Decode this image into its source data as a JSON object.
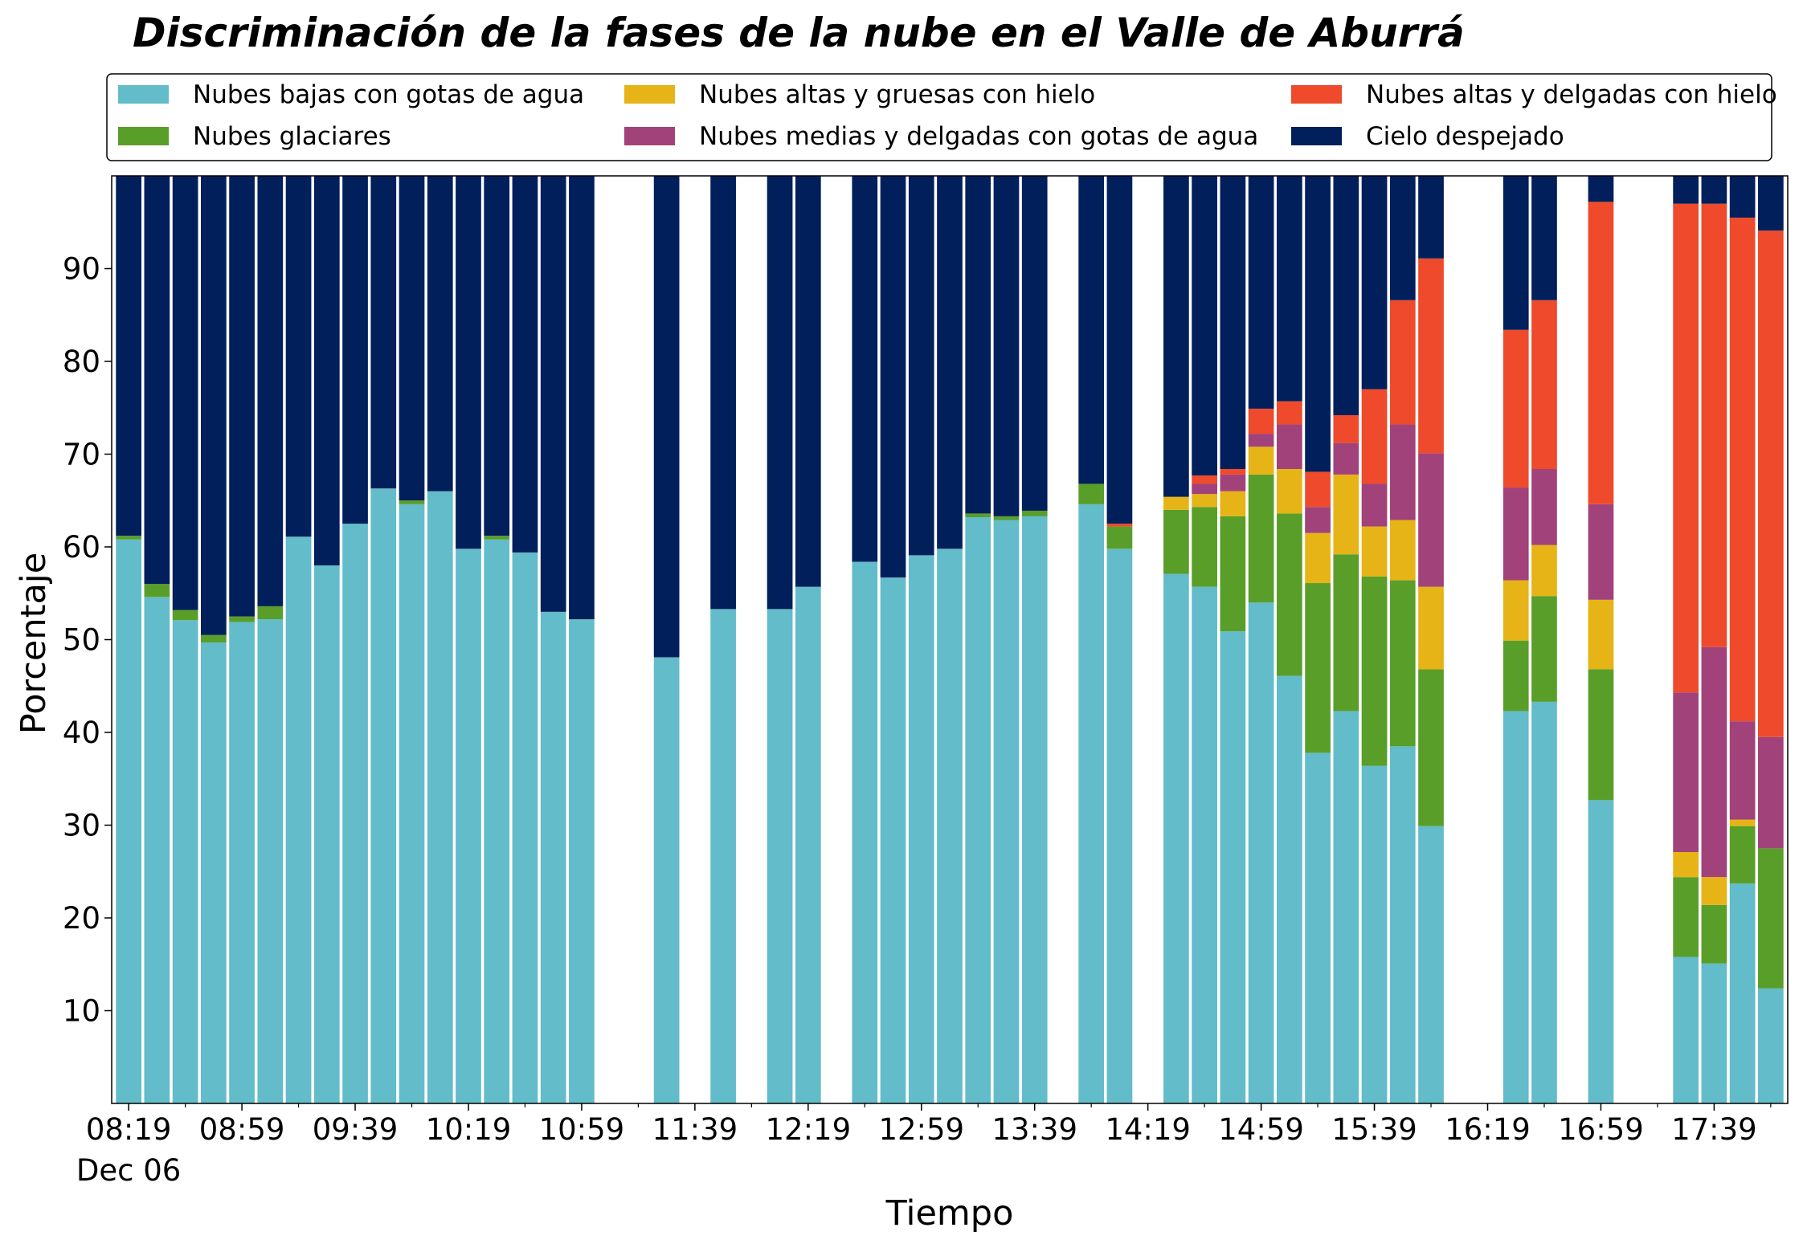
{
  "chart_data": {
    "type": "stacked_bar",
    "title": "Discriminación de la fases de la nube en el Valle de Aburrá",
    "xlabel": "Tiempo",
    "ylabel": "Porcentaje",
    "x": [
      "08:19",
      "08:29",
      "08:39",
      "08:49",
      "08:59",
      "09:09",
      "09:19",
      "09:29",
      "09:39",
      "09:49",
      "09:59",
      "10:09",
      "10:19",
      "10:29",
      "10:39",
      "10:49",
      "10:59",
      "11:29",
      "11:49",
      "12:09",
      "12:19",
      "12:39",
      "12:49",
      "12:59",
      "13:09",
      "13:19",
      "13:29",
      "13:39",
      "13:59",
      "14:09",
      "14:29",
      "14:39",
      "14:49",
      "14:59",
      "15:09",
      "15:19",
      "15:29",
      "15:39",
      "15:49",
      "15:59",
      "16:29",
      "16:39",
      "16:59",
      "17:29",
      "17:39",
      "17:49",
      "17:59"
    ],
    "xlim": [
      "08:13",
      "18:05"
    ],
    "xticks": [
      "08:19",
      "08:59",
      "09:39",
      "10:19",
      "10:59",
      "11:39",
      "12:19",
      "12:59",
      "13:39",
      "14:19",
      "14:59",
      "15:39",
      "16:19",
      "16:59",
      "17:39"
    ],
    "xminorticks": [
      "08:39",
      "09:19",
      "09:59",
      "10:39",
      "11:19",
      "11:59",
      "12:39",
      "13:19",
      "13:59",
      "14:39",
      "15:19",
      "15:59",
      "16:39",
      "17:19",
      "17:59"
    ],
    "xtick_sublabel": "Dec 06",
    "ylim": [
      0,
      100
    ],
    "yticks": [
      10,
      20,
      30,
      40,
      50,
      60,
      70,
      80,
      90
    ],
    "bar_width_minutes": 9,
    "legend": "top-outside",
    "series": [
      {
        "name": "Nubes bajas con gotas de agua",
        "color": "#63bcc9",
        "values": [
          60.8,
          54.6,
          52.1,
          49.7,
          51.9,
          52.2,
          61.1,
          58.0,
          62.5,
          66.3,
          64.6,
          66.0,
          59.8,
          60.8,
          59.4,
          53.0,
          52.2,
          48.1,
          53.3,
          53.3,
          55.7,
          58.4,
          56.7,
          59.1,
          59.8,
          63.2,
          62.9,
          63.3,
          64.6,
          59.8,
          57.1,
          55.7,
          50.9,
          54.0,
          46.1,
          37.8,
          42.3,
          36.4,
          38.5,
          29.9,
          42.3,
          43.3,
          32.7,
          15.8,
          15.1,
          23.7,
          12.4
        ]
      },
      {
        "name": "Nubes glaciares",
        "color": "#5a9e2a",
        "values": [
          0.4,
          1.4,
          1.1,
          0.8,
          0.6,
          1.4,
          0,
          0,
          0,
          0,
          0.4,
          0,
          0,
          0.4,
          0,
          0,
          0,
          0,
          0,
          0,
          0,
          0,
          0,
          0,
          0,
          0.4,
          0.4,
          0.6,
          2.2,
          2.4,
          6.9,
          8.6,
          12.4,
          13.8,
          17.5,
          18.3,
          16.9,
          20.4,
          17.9,
          16.9,
          7.6,
          11.4,
          14.1,
          8.6,
          6.3,
          6.2,
          15.1
        ]
      },
      {
        "name": "Nubes altas y gruesas con hielo",
        "color": "#e6b416",
        "values": [
          0,
          0,
          0,
          0,
          0,
          0,
          0,
          0,
          0,
          0,
          0,
          0,
          0,
          0,
          0,
          0,
          0,
          0,
          0,
          0,
          0,
          0,
          0,
          0,
          0,
          0,
          0,
          0,
          0,
          0,
          1.4,
          1.4,
          2.7,
          3.0,
          4.8,
          5.4,
          8.6,
          5.4,
          6.5,
          8.9,
          6.5,
          5.5,
          7.5,
          2.7,
          3.0,
          0.7,
          0
        ]
      },
      {
        "name": "Nubes medias y delgadas con gotas de agua",
        "color": "#a2427a",
        "values": [
          0,
          0,
          0,
          0,
          0,
          0,
          0,
          0,
          0,
          0,
          0,
          0,
          0,
          0,
          0,
          0,
          0,
          0,
          0,
          0,
          0,
          0,
          0,
          0,
          0,
          0,
          0,
          0,
          0,
          0,
          0,
          1.1,
          1.8,
          1.4,
          4.8,
          2.8,
          3.4,
          4.6,
          10.3,
          14.4,
          10.0,
          8.2,
          10.3,
          17.2,
          24.8,
          10.6,
          12.0
        ]
      },
      {
        "name": "Nubes altas y delgadas con hielo",
        "color": "#ee4a2b",
        "values": [
          0,
          0,
          0,
          0,
          0,
          0,
          0,
          0,
          0,
          0,
          0,
          0,
          0,
          0,
          0,
          0,
          0,
          0,
          0,
          0,
          0,
          0,
          0,
          0,
          0,
          0,
          0,
          0,
          0,
          0.3,
          0,
          0.9,
          0.6,
          2.7,
          2.5,
          3.8,
          3.0,
          10.2,
          13.4,
          21.0,
          17.0,
          18.2,
          32.6,
          52.7,
          47.8,
          54.3,
          54.6
        ]
      },
      {
        "name": "Cielo despejado",
        "color": "#011f5b",
        "values": [
          38.8,
          44.0,
          46.8,
          49.5,
          47.5,
          46.4,
          38.9,
          42.0,
          37.5,
          33.7,
          35.0,
          34.0,
          40.2,
          38.8,
          40.6,
          47.0,
          47.8,
          51.9,
          46.7,
          46.7,
          44.3,
          41.6,
          43.3,
          40.9,
          40.2,
          36.4,
          36.7,
          36.1,
          33.2,
          37.5,
          34.6,
          32.3,
          31.6,
          25.1,
          24.3,
          31.9,
          25.8,
          23.0,
          13.4,
          8.9,
          16.6,
          13.4,
          2.8,
          3.0,
          3.0,
          4.5,
          5.9
        ]
      }
    ]
  }
}
